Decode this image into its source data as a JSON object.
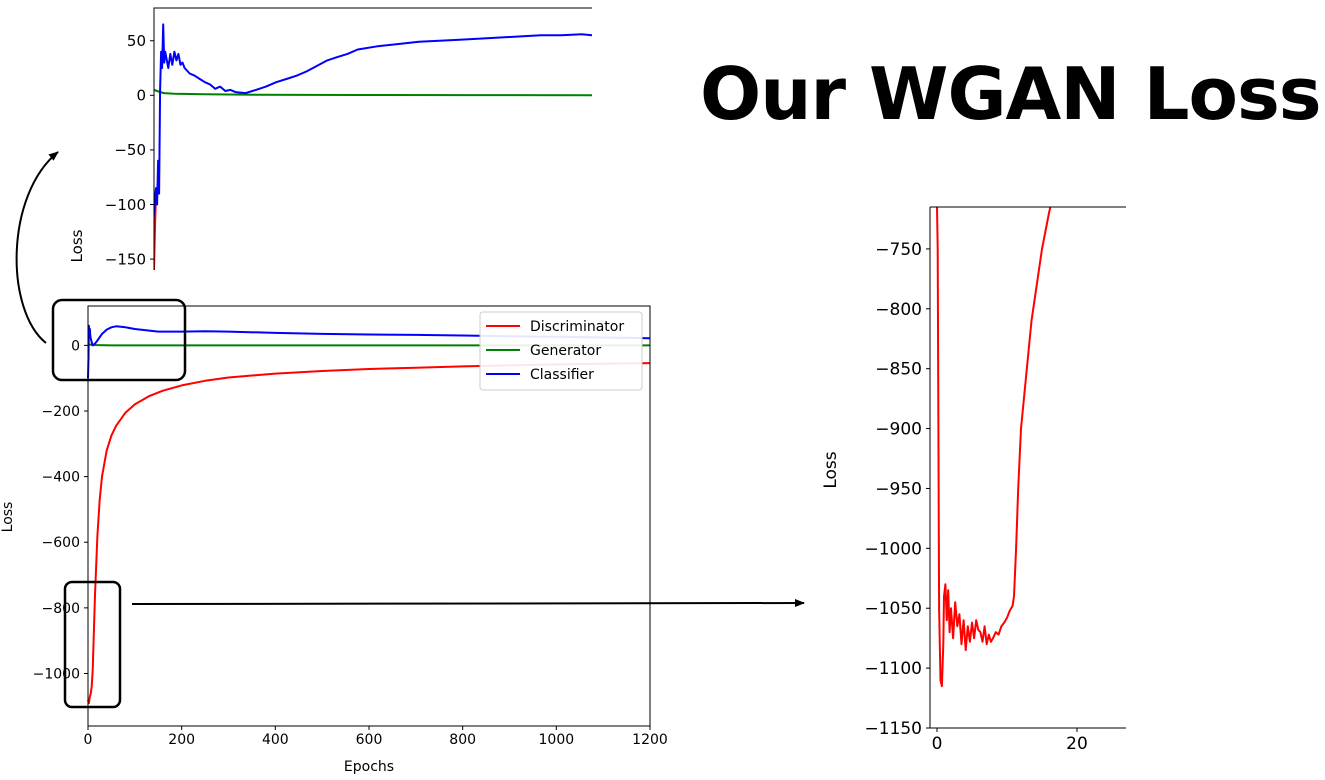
{
  "slide": {
    "title": "Our WGAN Loss"
  },
  "chart_data": [
    {
      "id": "main",
      "type": "line",
      "title": "",
      "xlabel": "Epochs",
      "ylabel": "Loss",
      "xlim": [
        0,
        1200
      ],
      "ylim": [
        -1160,
        120
      ],
      "xticks": [
        "0",
        "200",
        "400",
        "600",
        "800",
        "1000",
        "1200"
      ],
      "yticks": [
        "0",
        "−200",
        "−400",
        "−600",
        "−800",
        "−1000"
      ],
      "legend": "top-right",
      "series": [
        {
          "name": "Discriminator",
          "color": "#ff0000",
          "x": [
            0,
            2,
            4,
            6,
            8,
            10,
            12,
            15,
            20,
            25,
            30,
            40,
            50,
            60,
            80,
            100,
            130,
            160,
            200,
            250,
            300,
            400,
            500,
            600,
            700,
            800,
            900,
            1000,
            1100,
            1200
          ],
          "y": [
            -1080,
            -1090,
            -1070,
            -1060,
            -1040,
            -990,
            -900,
            -760,
            -580,
            -470,
            -400,
            -320,
            -275,
            -245,
            -205,
            -180,
            -155,
            -138,
            -122,
            -108,
            -98,
            -86,
            -78,
            -72,
            -68,
            -64,
            -61,
            -58,
            -56,
            -54
          ]
        },
        {
          "name": "Generator",
          "color": "#008000",
          "x": [
            0,
            3,
            6,
            10,
            50,
            100,
            200,
            400,
            600,
            800,
            1000,
            1200
          ],
          "y": [
            6,
            3,
            2,
            1,
            0,
            0,
            0,
            0,
            0,
            0,
            0,
            0
          ]
        },
        {
          "name": "Classifier",
          "color": "#0000ff",
          "x": [
            0,
            1,
            2,
            3,
            4,
            5,
            6,
            8,
            10,
            15,
            20,
            30,
            40,
            50,
            60,
            80,
            100,
            150,
            200,
            250,
            300,
            400,
            500,
            600,
            700,
            800,
            900,
            1000,
            1100,
            1200
          ],
          "y": [
            -100,
            -40,
            60,
            35,
            50,
            30,
            20,
            10,
            0,
            5,
            15,
            35,
            48,
            55,
            58,
            55,
            50,
            42,
            42,
            43,
            42,
            38,
            35,
            33,
            32,
            30,
            28,
            26,
            24,
            22
          ]
        }
      ]
    },
    {
      "id": "zoom-top",
      "type": "line",
      "title": "",
      "xlabel": "",
      "ylabel": "Loss",
      "xlim": [
        0,
        430
      ],
      "ylim": [
        -160,
        80
      ],
      "yticks": [
        "50",
        "0",
        "−50",
        "−100",
        "−150"
      ],
      "series": [
        {
          "name": "",
          "color": "#ff0000",
          "x": [
            0,
            1,
            2
          ],
          "y": [
            -160,
            -120,
            -90
          ]
        },
        {
          "name": "",
          "color": "#008000",
          "x": [
            0,
            3,
            6,
            10,
            20,
            50,
            100,
            200,
            300,
            430
          ],
          "y": [
            5,
            4,
            3,
            2,
            1.5,
            1,
            0.5,
            0.3,
            0.2,
            0.1
          ]
        },
        {
          "name": "",
          "color": "#0000ff",
          "x": [
            0,
            1,
            2,
            3,
            4,
            5,
            6,
            7,
            8,
            9,
            10,
            11,
            12,
            14,
            16,
            18,
            20,
            22,
            24,
            26,
            28,
            30,
            35,
            40,
            45,
            50,
            55,
            60,
            65,
            70,
            75,
            80,
            90,
            100,
            110,
            120,
            130,
            140,
            145,
            150,
            160,
            170,
            180,
            190,
            200,
            220,
            240,
            260,
            280,
            300,
            320,
            340,
            360,
            380,
            400,
            420,
            430
          ],
          "y": [
            -110,
            -95,
            -85,
            -100,
            -60,
            -90,
            5,
            40,
            25,
            65,
            30,
            40,
            35,
            25,
            38,
            28,
            40,
            32,
            38,
            28,
            30,
            25,
            20,
            18,
            15,
            12,
            10,
            6,
            8,
            4,
            5,
            3,
            2,
            5,
            8,
            12,
            15,
            18,
            20,
            22,
            27,
            32,
            35,
            38,
            42,
            45,
            47,
            49,
            50,
            51,
            52,
            53,
            54,
            55,
            55,
            56,
            55
          ]
        }
      ]
    },
    {
      "id": "zoom-bottom",
      "type": "line",
      "title": "",
      "xlabel": "",
      "ylabel": "Loss",
      "xlim": [
        -1,
        27
      ],
      "ylim": [
        -1150,
        -715
      ],
      "xticks": [
        "0",
        "20"
      ],
      "yticks": [
        "−750",
        "−800",
        "−850",
        "−900",
        "−950",
        "−1000",
        "−1050",
        "−1100",
        "−1150"
      ],
      "series": [
        {
          "name": "",
          "color": "#ff0000",
          "x": [
            0,
            0.1,
            0.2,
            0.3,
            0.5,
            0.7,
            0.9,
            1.0,
            1.2,
            1.4,
            1.6,
            1.8,
            2.0,
            2.3,
            2.6,
            2.9,
            3.2,
            3.5,
            3.8,
            4.1,
            4.4,
            4.7,
            5.0,
            5.3,
            5.6,
            5.9,
            6.2,
            6.5,
            6.8,
            7.1,
            7.4,
            7.7,
            8.0,
            8.4,
            8.8,
            9.2,
            9.6,
            10.0,
            10.4,
            10.8,
            11.0,
            11.3,
            11.6,
            12.0,
            12.5,
            13.0,
            13.5,
            14.0,
            14.5,
            15.0,
            15.5,
            16.0,
            16.3
          ],
          "y": [
            -715,
            -750,
            -900,
            -1050,
            -1110,
            -1115,
            -1080,
            -1040,
            -1030,
            -1060,
            -1035,
            -1070,
            -1050,
            -1075,
            -1045,
            -1065,
            -1055,
            -1080,
            -1060,
            -1085,
            -1065,
            -1078,
            -1062,
            -1075,
            -1060,
            -1068,
            -1070,
            -1078,
            -1065,
            -1080,
            -1072,
            -1078,
            -1075,
            -1070,
            -1072,
            -1065,
            -1062,
            -1058,
            -1052,
            -1048,
            -1040,
            -1000,
            -950,
            -900,
            -870,
            -840,
            -810,
            -790,
            -770,
            -750,
            -735,
            -720,
            -712
          ]
        }
      ]
    }
  ]
}
